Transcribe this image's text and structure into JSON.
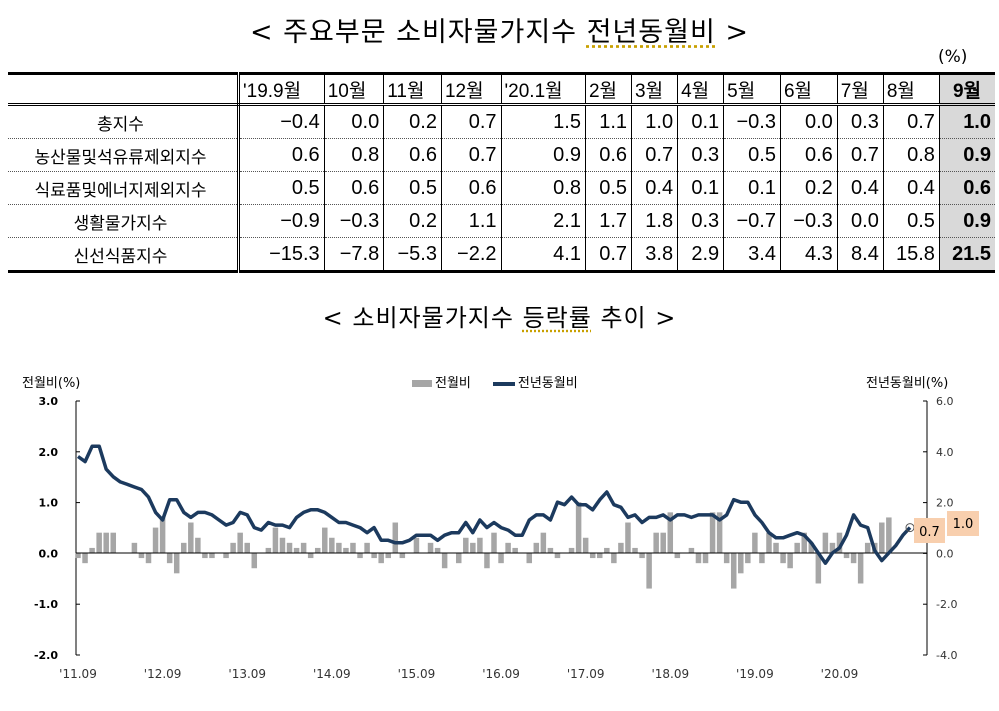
{
  "table_section": {
    "title_prefix": "< 주요부문 소비자물가지수 ",
    "title_underlined": "전년동월비",
    "title_suffix": " >",
    "unit": "(%)",
    "columns": [
      "'19.9월",
      "10월",
      "11월",
      "12월",
      "'20.1월",
      "2월",
      "3월",
      "4월",
      "5월",
      "6월",
      "7월",
      "8월",
      "9월"
    ],
    "highlight_column_index": 12,
    "rows": [
      {
        "label": "총지수",
        "values": [
          "-0.4",
          "0.0",
          "0.2",
          "0.7",
          "1.5",
          "1.1",
          "1.0",
          "0.1",
          "-0.3",
          "0.0",
          "0.3",
          "0.7",
          "1.0"
        ]
      },
      {
        "label": "농산물및석유류제외지수",
        "values": [
          "0.6",
          "0.8",
          "0.6",
          "0.7",
          "0.9",
          "0.6",
          "0.7",
          "0.3",
          "0.5",
          "0.6",
          "0.7",
          "0.8",
          "0.9"
        ]
      },
      {
        "label": "식료품및에너지제외지수",
        "values": [
          "0.5",
          "0.6",
          "0.5",
          "0.6",
          "0.8",
          "0.5",
          "0.4",
          "0.1",
          "0.1",
          "0.2",
          "0.4",
          "0.4",
          "0.6"
        ]
      },
      {
        "label": "생활물가지수",
        "values": [
          "-0.9",
          "-0.3",
          "0.2",
          "1.1",
          "2.1",
          "1.7",
          "1.8",
          "0.3",
          "-0.7",
          "-0.3",
          "0.0",
          "0.5",
          "0.9"
        ]
      },
      {
        "label": "신선식품지수",
        "values": [
          "-15.3",
          "-7.8",
          "-5.3",
          "-2.2",
          "4.1",
          "0.7",
          "3.8",
          "2.9",
          "3.4",
          "4.3",
          "8.4",
          "15.8",
          "21.5"
        ]
      }
    ]
  },
  "chart_section": {
    "title_prefix": "< 소비자물가지수 ",
    "title_underlined": "등락률",
    "title_suffix": " 추이 >"
  },
  "chart_data": {
    "type": "bar+line",
    "title": "< 소비자물가지수 등락률 추이 >",
    "ylabel_left": "전월비(%)",
    "ylabel_right": "전년동월비(%)",
    "legend": [
      "전월비",
      "전년동월비"
    ],
    "legend_position": "top-center",
    "grid": false,
    "ylim_left": [
      -2.0,
      3.0
    ],
    "yticks_left": [
      "3.0",
      "2.0",
      "1.0",
      "0.0",
      "-1.0",
      "-2.0"
    ],
    "ylim_right": [
      -4.0,
      6.0
    ],
    "yticks_right": [
      "6.0",
      "4.0",
      "2.0",
      "0.0",
      "-2.0",
      "-4.0"
    ],
    "xtick_labels": [
      "'11.09",
      "'12.09",
      "'13.09",
      "'14.09",
      "'15.09",
      "'16.09",
      "'17.09",
      "'18.09",
      "'19.09",
      "'20.09"
    ],
    "x_start": "2011-09",
    "x_end": "2020-09",
    "annotations": [
      {
        "text": "0.7",
        "series": "전월비",
        "at": "2020-09"
      },
      {
        "text": "1.0",
        "series": "전년동월비",
        "at": "2020-09"
      }
    ],
    "colors": {
      "bar": "#a6a6a6",
      "line": "#1c3a5e",
      "label_bg": "#f8cfae"
    },
    "series": [
      {
        "name": "전월비",
        "axis": "left",
        "type": "bar",
        "values": [
          -0.1,
          -0.2,
          0.1,
          0.4,
          0.4,
          0.4,
          0.0,
          0.0,
          0.2,
          -0.1,
          -0.2,
          0.5,
          0.7,
          -0.2,
          -0.4,
          0.2,
          0.6,
          0.3,
          -0.1,
          -0.1,
          0.0,
          -0.1,
          0.2,
          0.4,
          0.2,
          -0.3,
          0.0,
          0.1,
          0.5,
          0.3,
          0.2,
          0.1,
          0.2,
          -0.1,
          0.1,
          0.5,
          0.3,
          0.2,
          0.1,
          0.2,
          -0.1,
          0.2,
          -0.1,
          -0.2,
          -0.1,
          0.6,
          -0.1,
          0.0,
          0.3,
          0.0,
          0.2,
          0.1,
          -0.3,
          0.0,
          -0.2,
          0.3,
          0.2,
          0.3,
          -0.3,
          0.4,
          -0.2,
          0.2,
          0.1,
          0.0,
          -0.2,
          0.2,
          0.4,
          0.1,
          -0.1,
          0.0,
          0.1,
          1.0,
          0.3,
          -0.1,
          -0.1,
          0.1,
          -0.2,
          0.2,
          0.6,
          0.1,
          -0.1,
          -0.7,
          0.4,
          0.4,
          0.8,
          -0.1,
          0.0,
          0.1,
          -0.2,
          -0.2,
          0.8,
          0.8,
          -0.2,
          -0.7,
          -0.4,
          -0.2,
          0.4,
          -0.2,
          0.4,
          0.2,
          -0.2,
          -0.3,
          0.2,
          0.4,
          0.2,
          -0.6,
          0.4,
          0.2,
          0.4,
          -0.1,
          -0.2,
          -0.6,
          0.2,
          0.2,
          0.6,
          0.7
        ]
      },
      {
        "name": "전년동월비",
        "axis": "right",
        "type": "line",
        "values": [
          3.8,
          3.6,
          4.2,
          4.2,
          3.3,
          3.0,
          2.8,
          2.7,
          2.6,
          2.5,
          2.2,
          1.6,
          1.3,
          2.1,
          2.1,
          1.6,
          1.4,
          1.6,
          1.6,
          1.5,
          1.3,
          1.1,
          1.2,
          1.6,
          1.5,
          1.0,
          0.9,
          1.2,
          1.1,
          1.1,
          1.0,
          1.4,
          1.6,
          1.7,
          1.7,
          1.6,
          1.4,
          1.2,
          1.2,
          1.1,
          1.0,
          0.8,
          1.0,
          0.5,
          0.5,
          0.4,
          0.4,
          0.5,
          0.7,
          0.7,
          0.7,
          0.5,
          0.7,
          0.8,
          0.8,
          1.2,
          0.8,
          1.3,
          1.0,
          1.2,
          1.0,
          0.9,
          0.7,
          0.7,
          1.3,
          1.5,
          1.5,
          1.3,
          2.0,
          1.9,
          2.2,
          1.9,
          1.9,
          1.7,
          2.1,
          2.4,
          1.9,
          1.8,
          1.4,
          1.5,
          1.2,
          1.4,
          1.4,
          1.5,
          1.3,
          1.5,
          1.5,
          1.4,
          1.5,
          1.5,
          1.5,
          1.3,
          1.5,
          2.1,
          2.0,
          2.0,
          1.5,
          1.2,
          0.8,
          0.6,
          0.6,
          0.7,
          0.8,
          0.7,
          0.4,
          0.0,
          -0.4,
          0.0,
          0.2,
          0.7,
          1.5,
          1.1,
          1.0,
          0.1,
          -0.3,
          0.0,
          0.3,
          0.7,
          1.0
        ]
      }
    ]
  }
}
